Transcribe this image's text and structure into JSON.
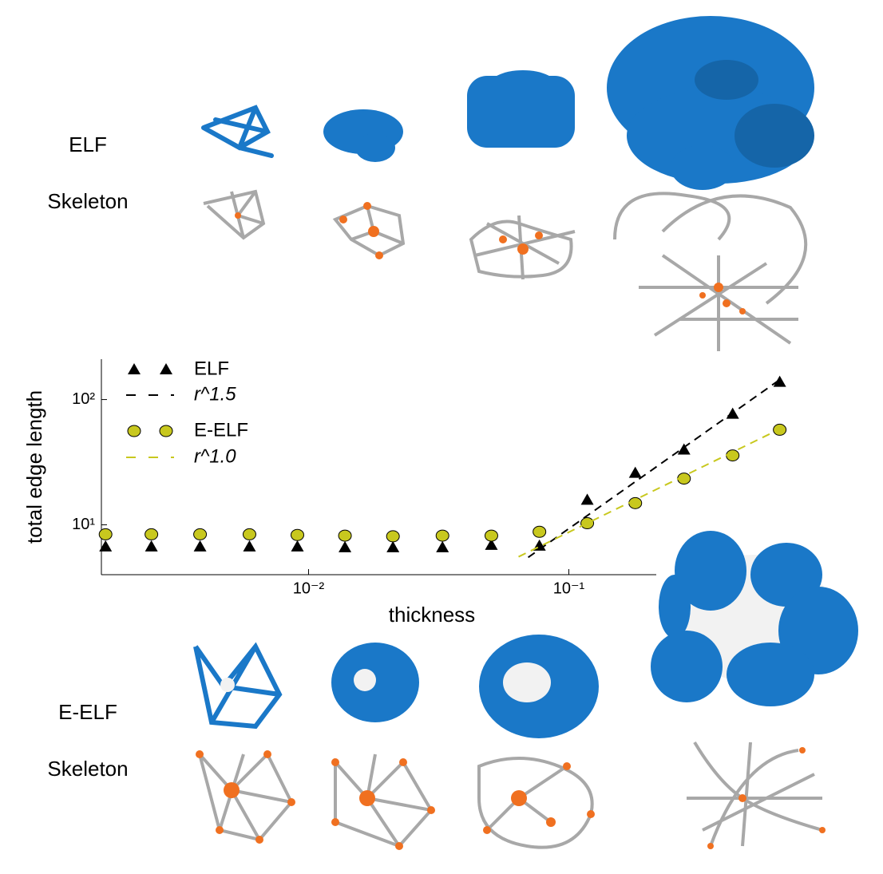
{
  "chart_data": {
    "type": "scatter",
    "log_x": true,
    "log_y": true,
    "xlabel": "thickness",
    "ylabel": "total edge length",
    "xlim": [
      0.0016,
      0.7
    ],
    "ylim": [
      4,
      210
    ],
    "xticks": [
      {
        "value": 0.01,
        "label": "10⁻²"
      },
      {
        "value": 0.1,
        "label": "10⁻¹"
      }
    ],
    "yticks": [
      {
        "value": 10,
        "label": "10¹"
      },
      {
        "value": 100,
        "label": "10²"
      }
    ],
    "legend": "upper left",
    "series": [
      {
        "name": "ELF",
        "color": "#000000",
        "marker": "triangle",
        "x": [
          0.00166,
          0.00249,
          0.00383,
          0.00593,
          0.00906,
          0.0138,
          0.0211,
          0.0327,
          0.0504,
          0.0771,
          0.1177,
          0.18,
          0.277,
          0.426,
          0.646
        ],
        "values": [
          6.7,
          6.7,
          6.7,
          6.7,
          6.7,
          6.6,
          6.6,
          6.6,
          6.9,
          6.8,
          15.8,
          25.9,
          39.7,
          76.8,
          138
        ]
      },
      {
        "name": "r^1.5",
        "color": "#000000",
        "linestyle": "dashed",
        "x": [
          0.0698,
          0.646
        ],
        "values": [
          5.5,
          144
        ]
      },
      {
        "name": "E-ELF",
        "color": "#c8c81e",
        "marker": "circle",
        "x": [
          0.00166,
          0.00249,
          0.00383,
          0.00593,
          0.00906,
          0.0138,
          0.0211,
          0.0327,
          0.0504,
          0.0771,
          0.1177,
          0.18,
          0.277,
          0.426,
          0.646
        ],
        "values": [
          8.4,
          8.4,
          8.4,
          8.4,
          8.3,
          8.2,
          8.1,
          8.2,
          8.2,
          8.8,
          10.3,
          14.9,
          23.4,
          35.8,
          57.4
        ]
      },
      {
        "name": "r^1.0",
        "color": "#c8c81e",
        "linestyle": "dashed",
        "x": [
          0.0641,
          0.646
        ],
        "values": [
          5.56,
          58.1
        ]
      }
    ]
  },
  "panels": {
    "top_labels": [
      "ELF",
      "Skeleton"
    ],
    "bottom_labels": [
      "E-ELF",
      "Skeleton"
    ]
  }
}
